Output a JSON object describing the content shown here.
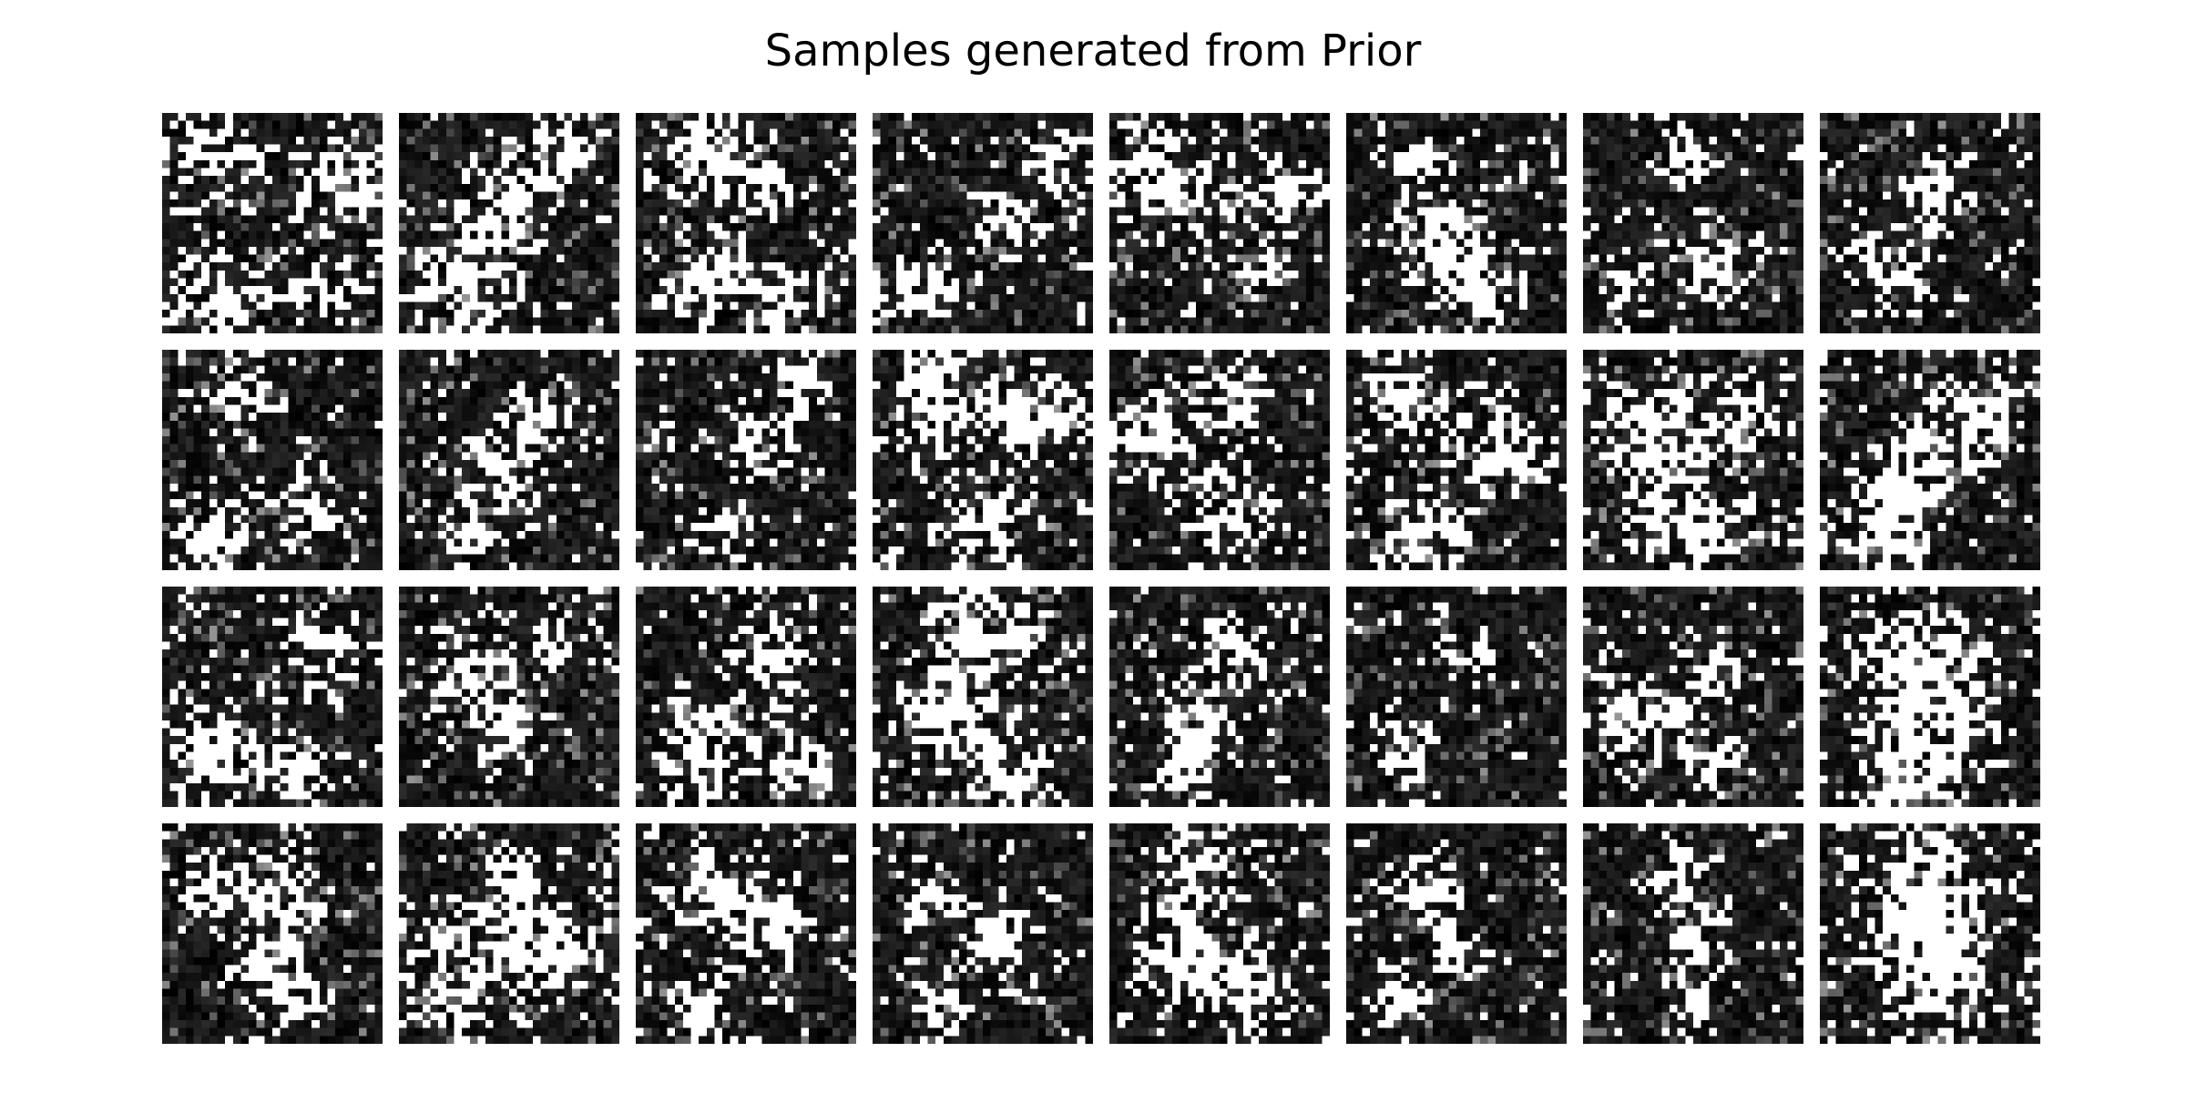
{
  "figure": {
    "title": "Samples generated from Prior"
  },
  "grid": {
    "rows": 4,
    "cols": 8,
    "image_resolution": 28,
    "colormap": "gray",
    "background_color": "#000000",
    "foreground_color": "#ffffff"
  },
  "samples": [
    {
      "row": 0,
      "col": 0,
      "blobs": [
        [
          0.2,
          0.15,
          0.22
        ],
        [
          0.85,
          0.3,
          0.2
        ],
        [
          0.25,
          0.88,
          0.22
        ],
        [
          0.8,
          0.85,
          0.15
        ]
      ],
      "density": 0.18
    },
    {
      "row": 0,
      "col": 1,
      "blobs": [
        [
          0.45,
          0.45,
          0.18
        ],
        [
          0.7,
          0.2,
          0.18
        ],
        [
          0.3,
          0.85,
          0.25
        ]
      ],
      "density": 0.2
    },
    {
      "row": 0,
      "col": 2,
      "blobs": [
        [
          0.3,
          0.2,
          0.2
        ],
        [
          0.6,
          0.35,
          0.15
        ],
        [
          0.3,
          0.75,
          0.2
        ],
        [
          0.7,
          0.85,
          0.15
        ]
      ],
      "density": 0.2
    },
    {
      "row": 0,
      "col": 3,
      "blobs": [
        [
          0.6,
          0.5,
          0.15
        ],
        [
          0.2,
          0.8,
          0.18
        ],
        [
          0.8,
          0.2,
          0.15
        ]
      ],
      "density": 0.16
    },
    {
      "row": 0,
      "col": 4,
      "blobs": [
        [
          0.25,
          0.3,
          0.25
        ],
        [
          0.8,
          0.35,
          0.15
        ],
        [
          0.75,
          0.75,
          0.12
        ]
      ],
      "density": 0.2
    },
    {
      "row": 0,
      "col": 5,
      "blobs": [
        [
          0.3,
          0.2,
          0.12
        ],
        [
          0.45,
          0.55,
          0.2
        ],
        [
          0.6,
          0.8,
          0.2
        ]
      ],
      "density": 0.17
    },
    {
      "row": 0,
      "col": 6,
      "blobs": [
        [
          0.45,
          0.2,
          0.12
        ],
        [
          0.2,
          0.75,
          0.12
        ],
        [
          0.6,
          0.7,
          0.15
        ]
      ],
      "density": 0.12
    },
    {
      "row": 0,
      "col": 7,
      "blobs": [
        [
          0.5,
          0.35,
          0.15
        ],
        [
          0.3,
          0.75,
          0.18
        ]
      ],
      "density": 0.13
    },
    {
      "row": 1,
      "col": 0,
      "blobs": [
        [
          0.35,
          0.2,
          0.15
        ],
        [
          0.2,
          0.85,
          0.18
        ],
        [
          0.65,
          0.75,
          0.15
        ]
      ],
      "density": 0.14
    },
    {
      "row": 1,
      "col": 1,
      "blobs": [
        [
          0.65,
          0.3,
          0.15
        ],
        [
          0.45,
          0.6,
          0.18
        ],
        [
          0.3,
          0.85,
          0.1
        ]
      ],
      "density": 0.13
    },
    {
      "row": 1,
      "col": 2,
      "blobs": [
        [
          0.55,
          0.4,
          0.15
        ],
        [
          0.75,
          0.15,
          0.12
        ],
        [
          0.4,
          0.85,
          0.15
        ]
      ],
      "density": 0.13
    },
    {
      "row": 1,
      "col": 3,
      "blobs": [
        [
          0.3,
          0.2,
          0.25
        ],
        [
          0.75,
          0.3,
          0.2
        ],
        [
          0.5,
          0.8,
          0.2
        ]
      ],
      "density": 0.22
    },
    {
      "row": 1,
      "col": 4,
      "blobs": [
        [
          0.2,
          0.4,
          0.2
        ],
        [
          0.55,
          0.2,
          0.15
        ],
        [
          0.55,
          0.75,
          0.2
        ]
      ],
      "density": 0.19
    },
    {
      "row": 1,
      "col": 5,
      "blobs": [
        [
          0.25,
          0.2,
          0.2
        ],
        [
          0.7,
          0.45,
          0.2
        ],
        [
          0.35,
          0.85,
          0.2
        ]
      ],
      "density": 0.22
    },
    {
      "row": 1,
      "col": 6,
      "blobs": [
        [
          0.3,
          0.35,
          0.25
        ],
        [
          0.75,
          0.3,
          0.18
        ],
        [
          0.5,
          0.8,
          0.22
        ]
      ],
      "density": 0.24
    },
    {
      "row": 1,
      "col": 7,
      "blobs": [
        [
          0.7,
          0.3,
          0.2
        ],
        [
          0.4,
          0.55,
          0.2
        ],
        [
          0.3,
          0.85,
          0.2
        ]
      ],
      "density": 0.22
    },
    {
      "row": 2,
      "col": 0,
      "blobs": [
        [
          0.75,
          0.3,
          0.18
        ],
        [
          0.25,
          0.75,
          0.2
        ],
        [
          0.65,
          0.85,
          0.15
        ]
      ],
      "density": 0.18
    },
    {
      "row": 2,
      "col": 1,
      "blobs": [
        [
          0.3,
          0.4,
          0.18
        ],
        [
          0.65,
          0.25,
          0.15
        ],
        [
          0.5,
          0.65,
          0.15
        ]
      ],
      "density": 0.15
    },
    {
      "row": 2,
      "col": 2,
      "blobs": [
        [
          0.6,
          0.3,
          0.18
        ],
        [
          0.3,
          0.75,
          0.22
        ],
        [
          0.75,
          0.8,
          0.15
        ]
      ],
      "density": 0.2
    },
    {
      "row": 2,
      "col": 3,
      "blobs": [
        [
          0.5,
          0.2,
          0.25
        ],
        [
          0.3,
          0.6,
          0.2
        ],
        [
          0.6,
          0.85,
          0.2
        ]
      ],
      "density": 0.23
    },
    {
      "row": 2,
      "col": 4,
      "blobs": [
        [
          0.6,
          0.3,
          0.15
        ],
        [
          0.4,
          0.6,
          0.15
        ],
        [
          0.3,
          0.85,
          0.15
        ]
      ],
      "density": 0.16
    },
    {
      "row": 2,
      "col": 5,
      "blobs": [
        [
          0.55,
          0.3,
          0.12
        ],
        [
          0.3,
          0.75,
          0.15
        ]
      ],
      "density": 0.11
    },
    {
      "row": 2,
      "col": 6,
      "blobs": [
        [
          0.25,
          0.6,
          0.2
        ],
        [
          0.6,
          0.4,
          0.15
        ],
        [
          0.6,
          0.8,
          0.12
        ]
      ],
      "density": 0.16
    },
    {
      "row": 2,
      "col": 7,
      "blobs": [
        [
          0.35,
          0.3,
          0.25
        ],
        [
          0.6,
          0.6,
          0.25
        ],
        [
          0.4,
          0.85,
          0.2
        ]
      ],
      "density": 0.26
    },
    {
      "row": 3,
      "col": 0,
      "blobs": [
        [
          0.2,
          0.3,
          0.15
        ],
        [
          0.5,
          0.3,
          0.18
        ],
        [
          0.55,
          0.7,
          0.2
        ]
      ],
      "density": 0.19
    },
    {
      "row": 3,
      "col": 1,
      "blobs": [
        [
          0.55,
          0.3,
          0.2
        ],
        [
          0.3,
          0.7,
          0.25
        ],
        [
          0.75,
          0.6,
          0.15
        ]
      ],
      "density": 0.24
    },
    {
      "row": 3,
      "col": 2,
      "blobs": [
        [
          0.3,
          0.3,
          0.18
        ],
        [
          0.6,
          0.45,
          0.2
        ],
        [
          0.3,
          0.85,
          0.15
        ]
      ],
      "density": 0.22
    },
    {
      "row": 3,
      "col": 3,
      "blobs": [
        [
          0.25,
          0.35,
          0.12
        ],
        [
          0.55,
          0.55,
          0.15
        ],
        [
          0.3,
          0.85,
          0.12
        ]
      ],
      "density": 0.12
    },
    {
      "row": 3,
      "col": 4,
      "blobs": [
        [
          0.4,
          0.2,
          0.2
        ],
        [
          0.3,
          0.6,
          0.2
        ],
        [
          0.6,
          0.75,
          0.2
        ]
      ],
      "density": 0.22
    },
    {
      "row": 3,
      "col": 5,
      "blobs": [
        [
          0.35,
          0.3,
          0.15
        ],
        [
          0.5,
          0.6,
          0.12
        ],
        [
          0.2,
          0.8,
          0.12
        ]
      ],
      "density": 0.14
    },
    {
      "row": 3,
      "col": 6,
      "blobs": [
        [
          0.45,
          0.25,
          0.15
        ],
        [
          0.5,
          0.55,
          0.12
        ],
        [
          0.5,
          0.85,
          0.1
        ]
      ],
      "density": 0.12
    },
    {
      "row": 3,
      "col": 7,
      "blobs": [
        [
          0.5,
          0.3,
          0.28
        ],
        [
          0.5,
          0.7,
          0.28
        ]
      ],
      "density": 0.3
    }
  ]
}
